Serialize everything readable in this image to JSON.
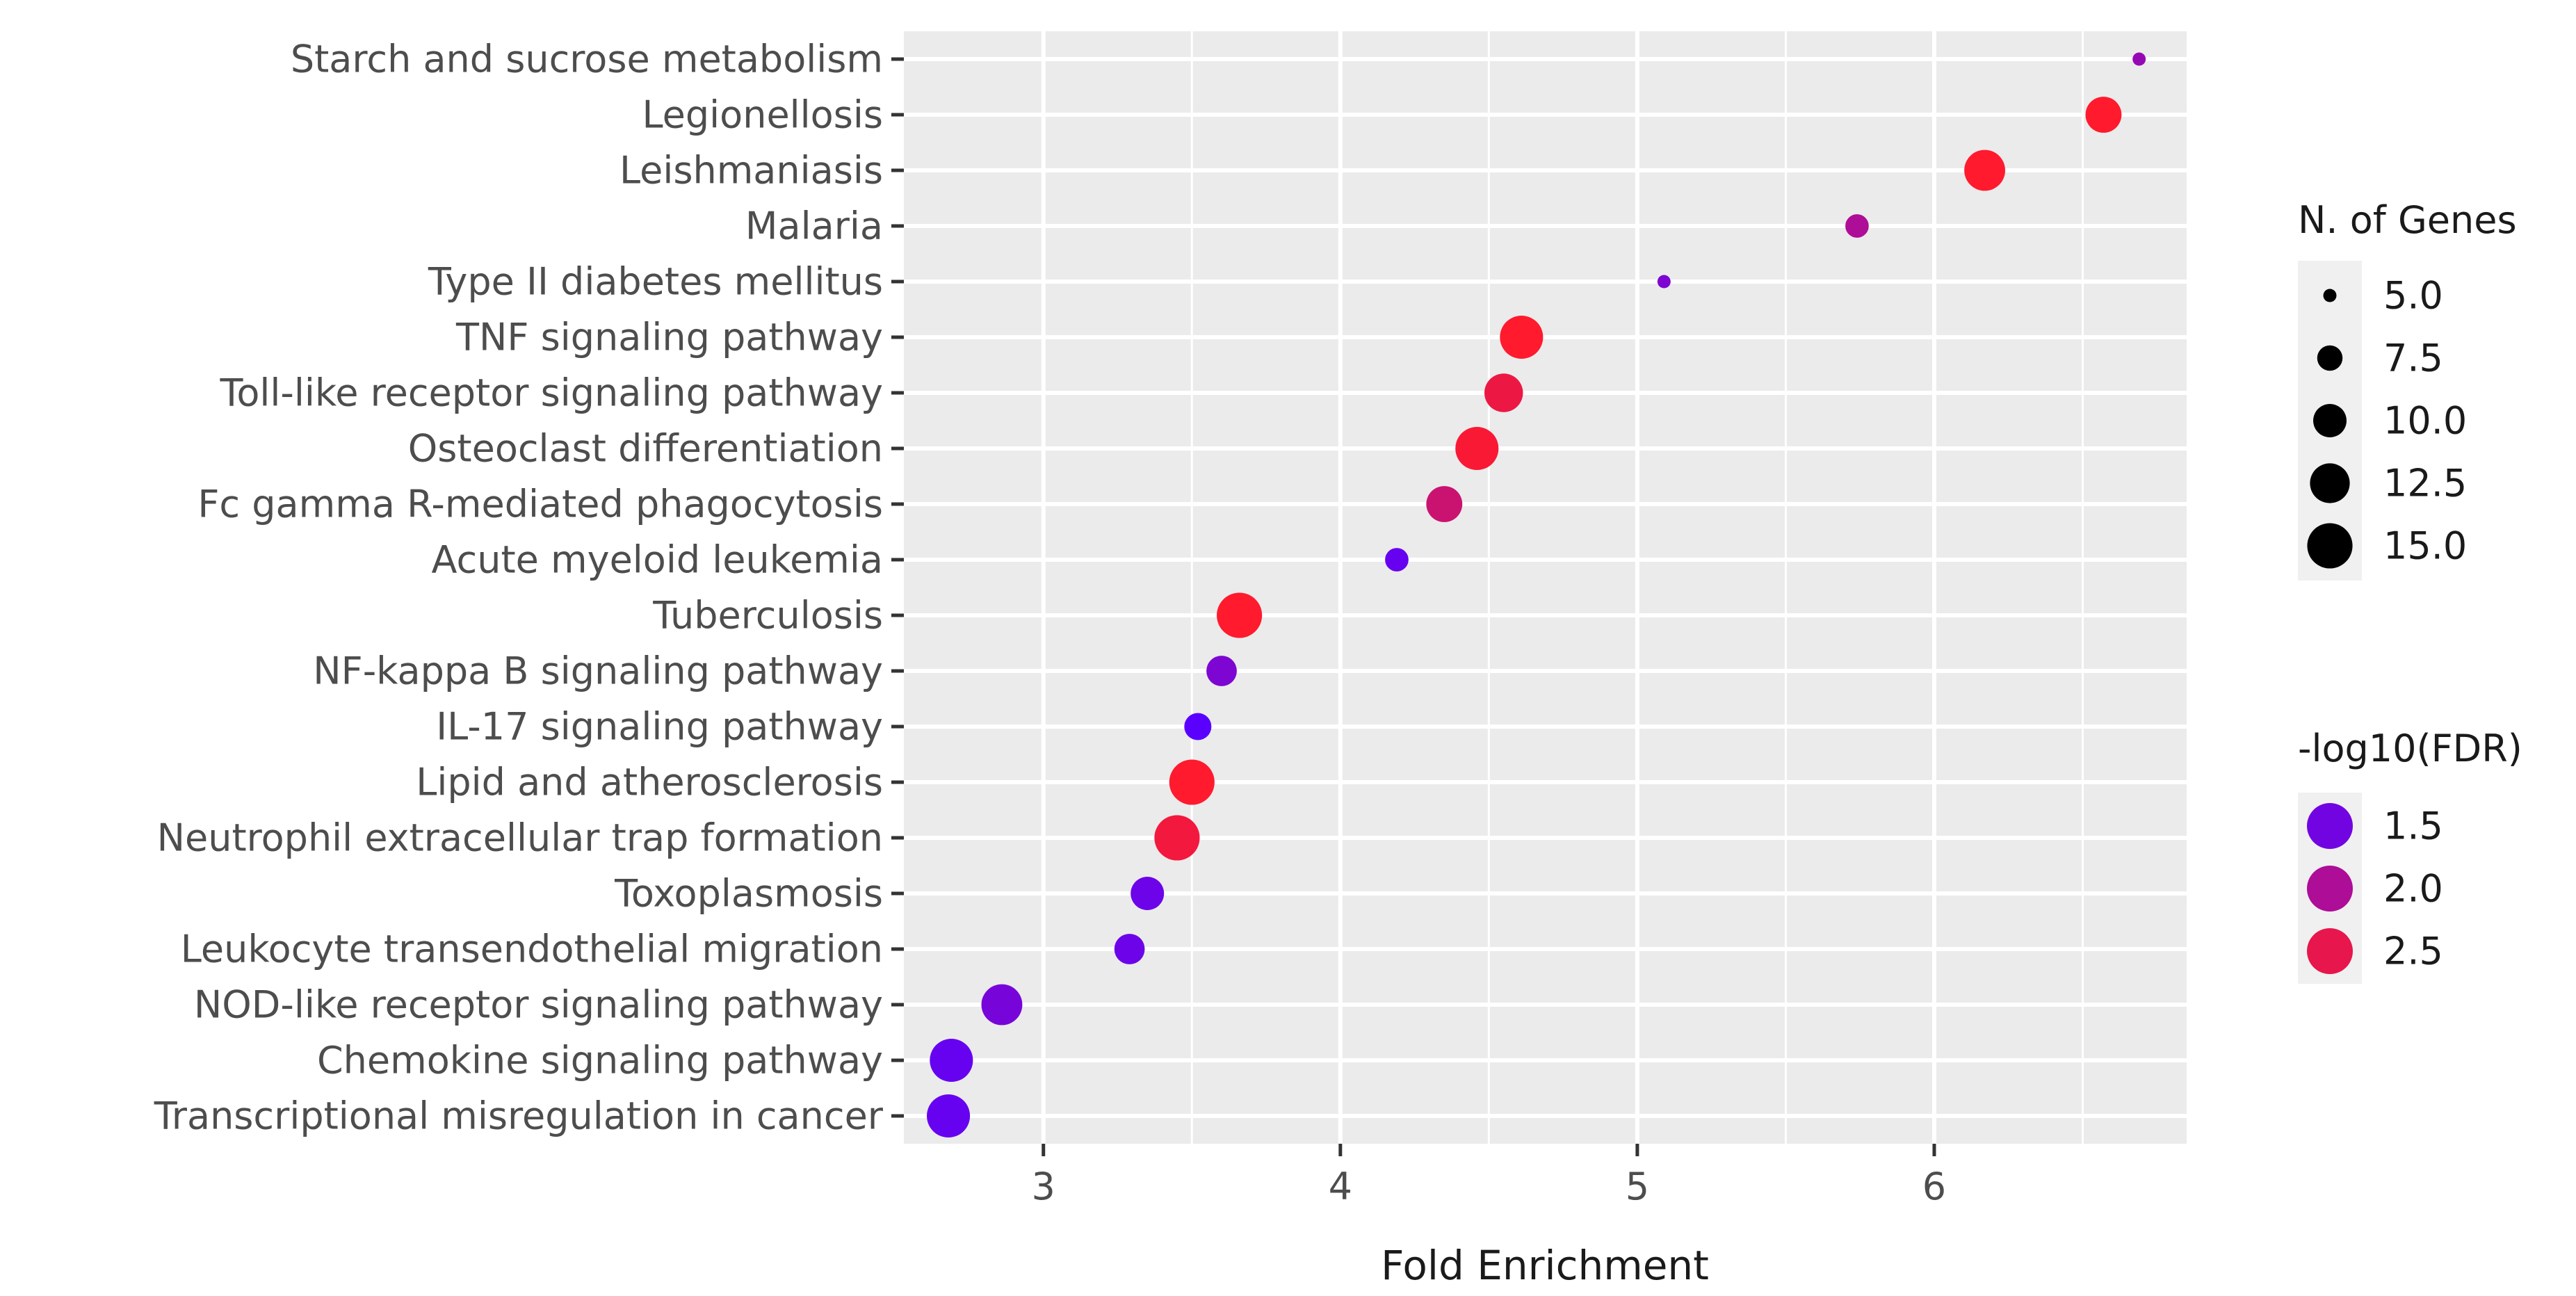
{
  "chart_data": {
    "type": "scatter",
    "xlabel": "Fold Enrichment",
    "ylabel": "",
    "xlim": [
      2.53,
      6.85
    ],
    "x_ticks": [
      3,
      4,
      5,
      6
    ],
    "x_tick_labels": [
      "3",
      "4",
      "5",
      "6"
    ],
    "categories": [
      "Transcriptional misregulation in cancer",
      "Chemokine signaling pathway",
      "NOD-like receptor signaling pathway",
      "Leukocyte transendothelial migration",
      "Toxoplasmosis",
      "Neutrophil extracellular trap formation",
      "Lipid and atherosclerosis",
      "IL-17 signaling pathway",
      "NF-kappa B signaling pathway",
      "Tuberculosis",
      "Acute myeloid leukemia",
      "Fc gamma R-mediated phagocytosis",
      "Osteoclast differentiation",
      "Toll-like receptor signaling pathway",
      "TNF signaling pathway",
      "Type II diabetes mellitus",
      "Malaria",
      "Leishmaniasis",
      "Legionellosis",
      "Starch and sucrose metabolism"
    ],
    "points": [
      {
        "category": "Transcriptional misregulation in cancer",
        "fold_enrichment": 2.68,
        "n_genes": 14,
        "neg_log10_fdr": 1.4
      },
      {
        "category": "Chemokine signaling pathway",
        "fold_enrichment": 2.69,
        "n_genes": 14,
        "neg_log10_fdr": 1.4
      },
      {
        "category": "NOD-like receptor signaling pathway",
        "fold_enrichment": 2.86,
        "n_genes": 13,
        "neg_log10_fdr": 1.55
      },
      {
        "category": "Leukocyte transendothelial migration",
        "fold_enrichment": 3.29,
        "n_genes": 9,
        "neg_log10_fdr": 1.45
      },
      {
        "category": "Toxoplasmosis",
        "fold_enrichment": 3.35,
        "n_genes": 10,
        "neg_log10_fdr": 1.45
      },
      {
        "category": "Neutrophil extracellular trap formation",
        "fold_enrichment": 3.45,
        "n_genes": 15,
        "neg_log10_fdr": 2.6
      },
      {
        "category": "Lipid and atherosclerosis",
        "fold_enrichment": 3.5,
        "n_genes": 16,
        "neg_log10_fdr": 2.7
      },
      {
        "category": "IL-17 signaling pathway",
        "fold_enrichment": 3.52,
        "n_genes": 8,
        "neg_log10_fdr": 1.3
      },
      {
        "category": "NF-kappa B signaling pathway",
        "fold_enrichment": 3.6,
        "n_genes": 9,
        "neg_log10_fdr": 1.6
      },
      {
        "category": "Tuberculosis",
        "fold_enrichment": 3.66,
        "n_genes": 16,
        "neg_log10_fdr": 2.7
      },
      {
        "category": "Acute myeloid leukemia",
        "fold_enrichment": 4.19,
        "n_genes": 7,
        "neg_log10_fdr": 1.4
      },
      {
        "category": "Fc gamma R-mediated phagocytosis",
        "fold_enrichment": 4.35,
        "n_genes": 11,
        "neg_log10_fdr": 2.25
      },
      {
        "category": "Osteoclast differentiation",
        "fold_enrichment": 4.46,
        "n_genes": 14,
        "neg_log10_fdr": 2.65
      },
      {
        "category": "Toll-like receptor signaling pathway",
        "fold_enrichment": 4.55,
        "n_genes": 12,
        "neg_log10_fdr": 2.55
      },
      {
        "category": "TNF signaling pathway",
        "fold_enrichment": 4.61,
        "n_genes": 14,
        "neg_log10_fdr": 2.7
      },
      {
        "category": "Type II diabetes mellitus",
        "fold_enrichment": 5.09,
        "n_genes": 4,
        "neg_log10_fdr": 1.6
      },
      {
        "category": "Malaria",
        "fold_enrichment": 5.74,
        "n_genes": 7,
        "neg_log10_fdr": 2.0
      },
      {
        "category": "Leishmaniasis",
        "fold_enrichment": 6.17,
        "n_genes": 13,
        "neg_log10_fdr": 2.7
      },
      {
        "category": "Legionellosis",
        "fold_enrichment": 6.57,
        "n_genes": 11,
        "neg_log10_fdr": 2.7
      },
      {
        "category": "Starch and sucrose metabolism",
        "fold_enrichment": 6.69,
        "n_genes": 4,
        "neg_log10_fdr": 1.8
      }
    ],
    "size_legend": {
      "title": "N. of Genes",
      "values": [
        5.0,
        7.5,
        10.0,
        12.5,
        15.0
      ],
      "labels": [
        "5.0",
        "7.5",
        "10.0",
        "12.5",
        "15.0"
      ]
    },
    "color_legend": {
      "title": "-log10(FDR)",
      "values": [
        1.5,
        2.0,
        2.5
      ],
      "labels": [
        "1.5",
        "2.0",
        "2.5"
      ],
      "range": [
        1.3,
        2.7
      ],
      "low_color": "#5a00ff",
      "high_color": "#ff1a2e"
    },
    "colors": {
      "panel_background": "#ebebeb",
      "gridline": "#ffffff",
      "legend_key_background": "#f0f0f0"
    }
  }
}
